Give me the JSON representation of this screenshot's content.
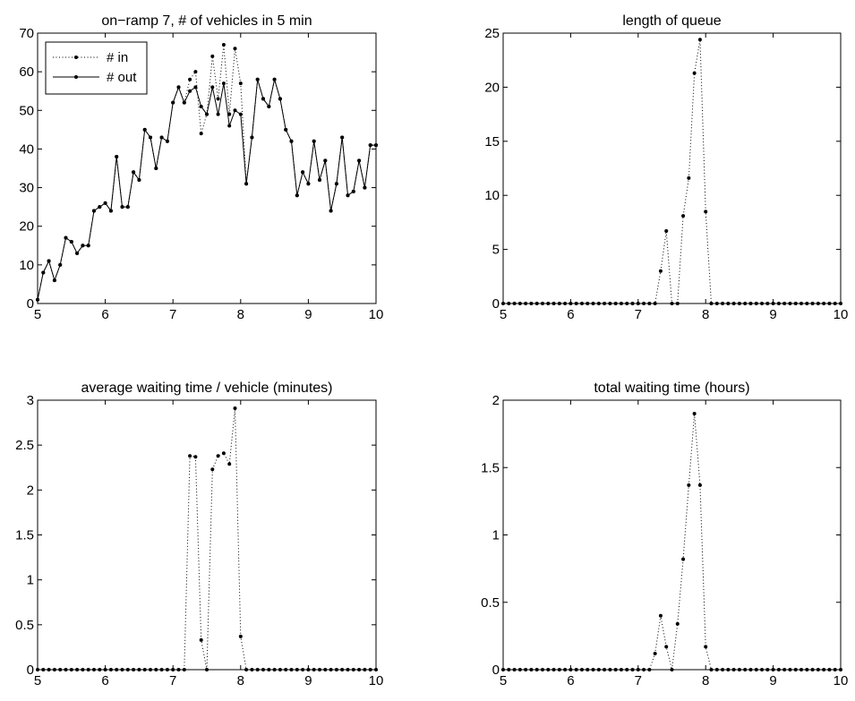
{
  "chart_data": [
    {
      "type": "line",
      "title": "on−ramp 7, # of vehicles in 5 min",
      "xlabel": "",
      "ylabel": "",
      "xlim": [
        5,
        10
      ],
      "ylim": [
        0,
        70
      ],
      "xticks": [
        "5",
        "6",
        "7",
        "8",
        "9",
        "10"
      ],
      "yticks": [
        "0",
        "10",
        "20",
        "30",
        "40",
        "50",
        "60",
        "70"
      ],
      "grid": false,
      "legend": "top-left",
      "x": [
        5.0,
        5.0833,
        5.1667,
        5.25,
        5.3333,
        5.4167,
        5.5,
        5.5833,
        5.6667,
        5.75,
        5.8333,
        5.9167,
        6.0,
        6.0833,
        6.1667,
        6.25,
        6.3333,
        6.4167,
        6.5,
        6.5833,
        6.6667,
        6.75,
        6.8333,
        6.9167,
        7.0,
        7.0833,
        7.1667,
        7.25,
        7.3333,
        7.4167,
        7.5,
        7.5833,
        7.6667,
        7.75,
        7.8333,
        7.9167,
        8.0,
        8.0833,
        8.1667,
        8.25,
        8.3333,
        8.4167,
        8.5,
        8.5833,
        8.6667,
        8.75,
        8.8333,
        8.9167,
        9.0,
        9.0833,
        9.1667,
        9.25,
        9.3333,
        9.4167,
        9.5,
        9.5833,
        9.6667,
        9.75,
        9.8333,
        9.9167,
        10.0
      ],
      "series": [
        {
          "name": "# in",
          "style": "dotted",
          "values": [
            1,
            8,
            11,
            6,
            10,
            17,
            16,
            13,
            15,
            15,
            24,
            25,
            26,
            24,
            38,
            25,
            25,
            34,
            32,
            45,
            43,
            35,
            43,
            42,
            52,
            56,
            52,
            58,
            60,
            44,
            49,
            64,
            53,
            67,
            49,
            66,
            57,
            31,
            43,
            58,
            53,
            51,
            58,
            53,
            45,
            42,
            28,
            34,
            31,
            42,
            32,
            37,
            24,
            31,
            43,
            28,
            29,
            37,
            30,
            41,
            41
          ]
        },
        {
          "name": "# out",
          "style": "solid",
          "values": [
            1,
            8,
            11,
            6,
            10,
            17,
            16,
            13,
            15,
            15,
            24,
            25,
            26,
            24,
            38,
            25,
            25,
            34,
            32,
            45,
            43,
            35,
            43,
            42,
            52,
            56,
            52,
            55,
            56,
            51,
            49,
            56,
            49,
            57,
            46,
            50,
            49,
            31,
            43,
            58,
            53,
            51,
            58,
            53,
            45,
            42,
            28,
            34,
            31,
            42,
            32,
            37,
            24,
            31,
            43,
            28,
            29,
            37,
            30,
            41,
            41
          ]
        }
      ]
    },
    {
      "type": "line",
      "title": "length of queue",
      "xlabel": "",
      "ylabel": "",
      "xlim": [
        5,
        10
      ],
      "ylim": [
        0,
        25
      ],
      "xticks": [
        "5",
        "6",
        "7",
        "8",
        "9",
        "10"
      ],
      "yticks": [
        "0",
        "5",
        "10",
        "15",
        "20",
        "25"
      ],
      "grid": false,
      "x": [
        5.0,
        5.0833,
        5.1667,
        5.25,
        5.3333,
        5.4167,
        5.5,
        5.5833,
        5.6667,
        5.75,
        5.8333,
        5.9167,
        6.0,
        6.0833,
        6.1667,
        6.25,
        6.3333,
        6.4167,
        6.5,
        6.5833,
        6.6667,
        6.75,
        6.8333,
        6.9167,
        7.0,
        7.0833,
        7.1667,
        7.25,
        7.3333,
        7.4167,
        7.5,
        7.5833,
        7.6667,
        7.75,
        7.8333,
        7.9167,
        8.0,
        8.0833,
        8.1667,
        8.25,
        8.3333,
        8.4167,
        8.5,
        8.5833,
        8.6667,
        8.75,
        8.8333,
        8.9167,
        9.0,
        9.0833,
        9.1667,
        9.25,
        9.3333,
        9.4167,
        9.5,
        9.5833,
        9.6667,
        9.75,
        9.8333,
        9.9167,
        10.0
      ],
      "series": [
        {
          "style": "dotted",
          "values": [
            0,
            0,
            0,
            0,
            0,
            0,
            0,
            0,
            0,
            0,
            0,
            0,
            0,
            0,
            0,
            0,
            0,
            0,
            0,
            0,
            0,
            0,
            0,
            0,
            0,
            0,
            0,
            0,
            3.0,
            6.7,
            0,
            0,
            8.1,
            11.6,
            21.3,
            24.4,
            8.5,
            0,
            0,
            0,
            0,
            0,
            0,
            0,
            0,
            0,
            0,
            0,
            0,
            0,
            0,
            0,
            0,
            0,
            0,
            0,
            0,
            0,
            0,
            0,
            0
          ]
        }
      ]
    },
    {
      "type": "line",
      "title": "average waiting time / vehicle (minutes)",
      "xlabel": "",
      "ylabel": "",
      "xlim": [
        5,
        10
      ],
      "ylim": [
        0,
        3
      ],
      "xticks": [
        "5",
        "6",
        "7",
        "8",
        "9",
        "10"
      ],
      "yticks": [
        "0",
        "0.5",
        "1",
        "1.5",
        "2",
        "2.5",
        "3"
      ],
      "grid": false,
      "x": [
        5.0,
        5.0833,
        5.1667,
        5.25,
        5.3333,
        5.4167,
        5.5,
        5.5833,
        5.6667,
        5.75,
        5.8333,
        5.9167,
        6.0,
        6.0833,
        6.1667,
        6.25,
        6.3333,
        6.4167,
        6.5,
        6.5833,
        6.6667,
        6.75,
        6.8333,
        6.9167,
        7.0,
        7.0833,
        7.1667,
        7.25,
        7.3333,
        7.4167,
        7.5,
        7.5833,
        7.6667,
        7.75,
        7.8333,
        7.9167,
        8.0,
        8.0833,
        8.1667,
        8.25,
        8.3333,
        8.4167,
        8.5,
        8.5833,
        8.6667,
        8.75,
        8.8333,
        8.9167,
        9.0,
        9.0833,
        9.1667,
        9.25,
        9.3333,
        9.4167,
        9.5,
        9.5833,
        9.6667,
        9.75,
        9.8333,
        9.9167,
        10.0
      ],
      "series": [
        {
          "style": "dotted",
          "values": [
            0,
            0,
            0,
            0,
            0,
            0,
            0,
            0,
            0,
            0,
            0,
            0,
            0,
            0,
            0,
            0,
            0,
            0,
            0,
            0,
            0,
            0,
            0,
            0,
            0,
            0,
            0,
            2.38,
            2.37,
            0.33,
            0,
            2.23,
            2.38,
            2.41,
            2.29,
            2.91,
            0.37,
            0,
            0,
            0,
            0,
            0,
            0,
            0,
            0,
            0,
            0,
            0,
            0,
            0,
            0,
            0,
            0,
            0,
            0,
            0,
            0,
            0,
            0,
            0,
            0
          ]
        }
      ]
    },
    {
      "type": "line",
      "title": "total waiting time (hours)",
      "xlabel": "",
      "ylabel": "",
      "xlim": [
        5,
        10
      ],
      "ylim": [
        0,
        2
      ],
      "xticks": [
        "5",
        "6",
        "7",
        "8",
        "9",
        "10"
      ],
      "yticks": [
        "0",
        "0.5",
        "1",
        "1.5",
        "2"
      ],
      "grid": false,
      "x": [
        5.0,
        5.0833,
        5.1667,
        5.25,
        5.3333,
        5.4167,
        5.5,
        5.5833,
        5.6667,
        5.75,
        5.8333,
        5.9167,
        6.0,
        6.0833,
        6.1667,
        6.25,
        6.3333,
        6.4167,
        6.5,
        6.5833,
        6.6667,
        6.75,
        6.8333,
        6.9167,
        7.0,
        7.0833,
        7.1667,
        7.25,
        7.3333,
        7.4167,
        7.5,
        7.5833,
        7.6667,
        7.75,
        7.8333,
        7.9167,
        8.0,
        8.0833,
        8.1667,
        8.25,
        8.3333,
        8.4167,
        8.5,
        8.5833,
        8.6667,
        8.75,
        8.8333,
        8.9167,
        9.0,
        9.0833,
        9.1667,
        9.25,
        9.3333,
        9.4167,
        9.5,
        9.5833,
        9.6667,
        9.75,
        9.8333,
        9.9167,
        10.0
      ],
      "series": [
        {
          "style": "dotted",
          "values": [
            0,
            0,
            0,
            0,
            0,
            0,
            0,
            0,
            0,
            0,
            0,
            0,
            0,
            0,
            0,
            0,
            0,
            0,
            0,
            0,
            0,
            0,
            0,
            0,
            0,
            0,
            0,
            0.12,
            0.4,
            0.17,
            0,
            0.34,
            0.82,
            1.37,
            1.9,
            1.37,
            0.17,
            0,
            0,
            0,
            0,
            0,
            0,
            0,
            0,
            0,
            0,
            0,
            0,
            0,
            0,
            0,
            0,
            0,
            0,
            0,
            0,
            0,
            0,
            0,
            0
          ]
        }
      ]
    }
  ]
}
